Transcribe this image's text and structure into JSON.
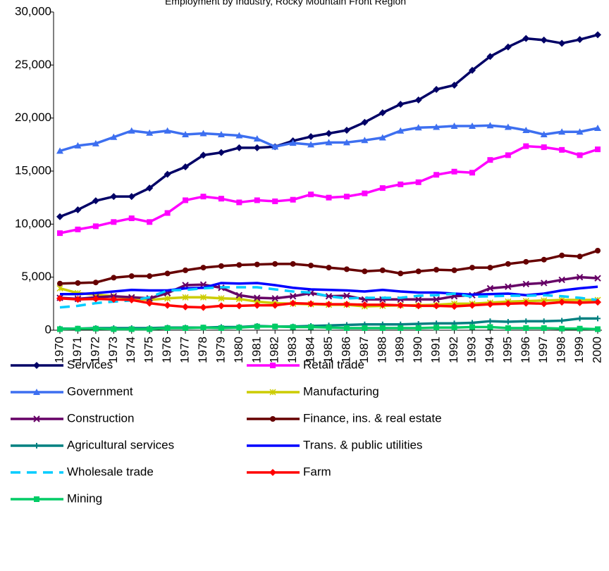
{
  "chart_data": {
    "type": "line",
    "title": "Employment by Industry, Rocky Mountain Front Region",
    "categories": [
      "1970",
      "1971",
      "1972",
      "1973",
      "1974",
      "1975",
      "1976",
      "1977",
      "1978",
      "1979",
      "1980",
      "1981",
      "1982",
      "1983",
      "1984",
      "1985",
      "1986",
      "1987",
      "1988",
      "1989",
      "1990",
      "1991",
      "1992",
      "1993",
      "1994",
      "1995",
      "1996",
      "1997",
      "1998",
      "1999",
      "2000"
    ],
    "ylim": [
      0,
      30000
    ],
    "yticks": [
      0,
      {
        "value": 5000,
        "label": "5,000"
      },
      {
        "value": 10000,
        "label": "10,000"
      },
      {
        "value": 15000,
        "label": "15,000"
      },
      {
        "value": 20000,
        "label": "20,000"
      },
      {
        "value": 25000,
        "label": "25,000"
      },
      {
        "value": 30000,
        "label": "30,000"
      }
    ],
    "grid": false,
    "legend": "bottom",
    "series": [
      {
        "name": "Services",
        "color": "#000066",
        "marker": "diamond",
        "values": [
          10700,
          11350,
          12200,
          12600,
          12600,
          13400,
          14700,
          15400,
          16500,
          16750,
          17200,
          17200,
          17300,
          17850,
          18250,
          18550,
          18850,
          19600,
          20500,
          21300,
          21700,
          22700,
          23100,
          24500,
          25800,
          26700,
          27500,
          27350,
          27050,
          27400,
          27850
        ]
      },
      {
        "name": "Retail trade",
        "color": "#ff00ff",
        "marker": "square",
        "values": [
          9150,
          9500,
          9800,
          10200,
          10550,
          10200,
          11050,
          12250,
          12600,
          12400,
          12050,
          12250,
          12150,
          12300,
          12800,
          12500,
          12600,
          12900,
          13400,
          13750,
          13950,
          14650,
          14950,
          14850,
          16050,
          16500,
          17350,
          17250,
          17000,
          16500,
          17050
        ]
      },
      {
        "name": "Government",
        "color": "#3d6ff0",
        "marker": "triangle",
        "values": [
          16900,
          17400,
          17600,
          18200,
          18800,
          18600,
          18800,
          18450,
          18550,
          18450,
          18350,
          18050,
          17300,
          17650,
          17500,
          17700,
          17700,
          17900,
          18150,
          18800,
          19100,
          19150,
          19250,
          19250,
          19300,
          19150,
          18850,
          18450,
          18700,
          18700,
          19050
        ]
      },
      {
        "name": "Manufacturing",
        "color": "#cccc00",
        "marker": "star",
        "values": [
          3950,
          3500,
          3350,
          3200,
          3000,
          2850,
          3000,
          3100,
          3100,
          3000,
          2950,
          2700,
          2550,
          2500,
          2450,
          2400,
          2400,
          2250,
          2300,
          2350,
          2350,
          2400,
          2500,
          2500,
          2600,
          2700,
          2750,
          2800,
          2850,
          2850,
          2850
        ]
      },
      {
        "name": "Construction",
        "color": "#660066",
        "marker": "x",
        "values": [
          3050,
          2950,
          3100,
          3200,
          3100,
          3000,
          3500,
          4250,
          4300,
          4000,
          3300,
          3050,
          3000,
          3200,
          3500,
          3200,
          3250,
          2900,
          2900,
          2900,
          2900,
          2900,
          3200,
          3300,
          3950,
          4100,
          4350,
          4450,
          4750,
          5000,
          4900
        ]
      },
      {
        "name": "Finance, ins. & real estate",
        "color": "#660000",
        "marker": "circle",
        "values": [
          4400,
          4450,
          4500,
          4950,
          5100,
          5100,
          5350,
          5650,
          5900,
          6050,
          6150,
          6200,
          6250,
          6250,
          6100,
          5900,
          5750,
          5550,
          5650,
          5350,
          5550,
          5700,
          5650,
          5900,
          5900,
          6250,
          6450,
          6650,
          7050,
          6950,
          7500
        ]
      },
      {
        "name": "Agricultural services",
        "color": "#008080",
        "marker": "plus",
        "values": [
          150,
          150,
          200,
          200,
          200,
          200,
          250,
          250,
          250,
          300,
          300,
          400,
          350,
          350,
          400,
          450,
          500,
          550,
          550,
          550,
          600,
          650,
          650,
          700,
          850,
          800,
          850,
          850,
          900,
          1100,
          1100
        ]
      },
      {
        "name": "Trans. & public utilities",
        "color": "#0000ff",
        "marker": "none",
        "values": [
          3400,
          3400,
          3500,
          3650,
          3800,
          3750,
          3750,
          3950,
          4000,
          4450,
          4400,
          4450,
          4250,
          4000,
          3850,
          3800,
          3750,
          3650,
          3800,
          3650,
          3550,
          3550,
          3450,
          3350,
          3400,
          3450,
          3300,
          3450,
          3750,
          3950,
          4100
        ]
      },
      {
        "name": "Wholesale trade",
        "color": "#00ccff",
        "marker": "none",
        "dash": true,
        "values": [
          2150,
          2300,
          2550,
          2700,
          2800,
          3100,
          3750,
          3800,
          3950,
          4050,
          4050,
          4050,
          3850,
          3650,
          3550,
          3200,
          3000,
          3050,
          3050,
          3050,
          3250,
          3300,
          3450,
          3150,
          3200,
          3250,
          3250,
          3300,
          3200,
          3050,
          2850
        ]
      },
      {
        "name": "Farm",
        "color": "#ff0000",
        "marker": "diamond",
        "values": [
          3000,
          2900,
          2950,
          2900,
          2850,
          2550,
          2350,
          2200,
          2150,
          2300,
          2300,
          2350,
          2350,
          2550,
          2500,
          2450,
          2450,
          2400,
          2400,
          2350,
          2300,
          2300,
          2250,
          2350,
          2450,
          2500,
          2550,
          2500,
          2650,
          2600,
          2650
        ]
      },
      {
        "name": "Mining",
        "color": "#00cc66",
        "marker": "square",
        "values": [
          100,
          150,
          150,
          100,
          100,
          100,
          200,
          200,
          250,
          200,
          250,
          350,
          350,
          300,
          300,
          250,
          200,
          200,
          200,
          200,
          200,
          250,
          250,
          300,
          300,
          200,
          200,
          200,
          150,
          150,
          100
        ]
      }
    ]
  }
}
